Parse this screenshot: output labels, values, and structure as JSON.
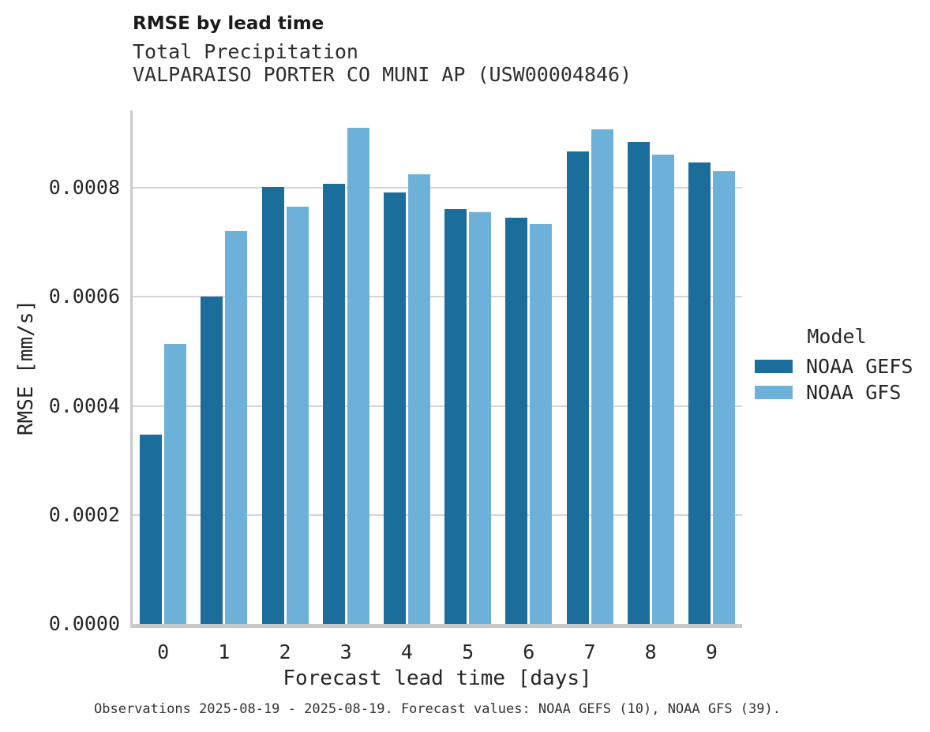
{
  "chart_data": {
    "type": "bar",
    "title": "RMSE by lead time",
    "subtitle1": "Total Precipitation",
    "subtitle2": "VALPARAISO PORTER CO MUNI AP (USW00004846)",
    "xlabel": "Forecast lead time [days]",
    "ylabel": "RMSE [mm/s]",
    "categories": [
      "0",
      "1",
      "2",
      "3",
      "4",
      "5",
      "6",
      "7",
      "8",
      "9"
    ],
    "series": [
      {
        "name": "NOAA GEFS",
        "color": "#1B6D9B",
        "values": [
          0.000347,
          0.0006,
          0.000801,
          0.000808,
          0.000791,
          0.000761,
          0.000745,
          0.000867,
          0.000884,
          0.000846
        ]
      },
      {
        "name": "NOAA GFS",
        "color": "#6DB1D8",
        "values": [
          0.000513,
          0.00072,
          0.000765,
          0.00091,
          0.000825,
          0.000755,
          0.000733,
          0.000907,
          0.000861,
          0.000831
        ]
      }
    ],
    "ylim": [
      0,
      0.000942
    ],
    "yticks": [
      0,
      0.0002,
      0.0004,
      0.0006,
      0.0008
    ],
    "ytick_labels": [
      "0.0000",
      "0.0002",
      "0.0004",
      "0.0006",
      "0.0008"
    ],
    "grid": true,
    "legend": {
      "title": "Model",
      "position": "right"
    },
    "caption": "Observations 2025-08-19 - 2025-08-19. Forecast values: NOAA GEFS (10), NOAA GFS (39)."
  }
}
